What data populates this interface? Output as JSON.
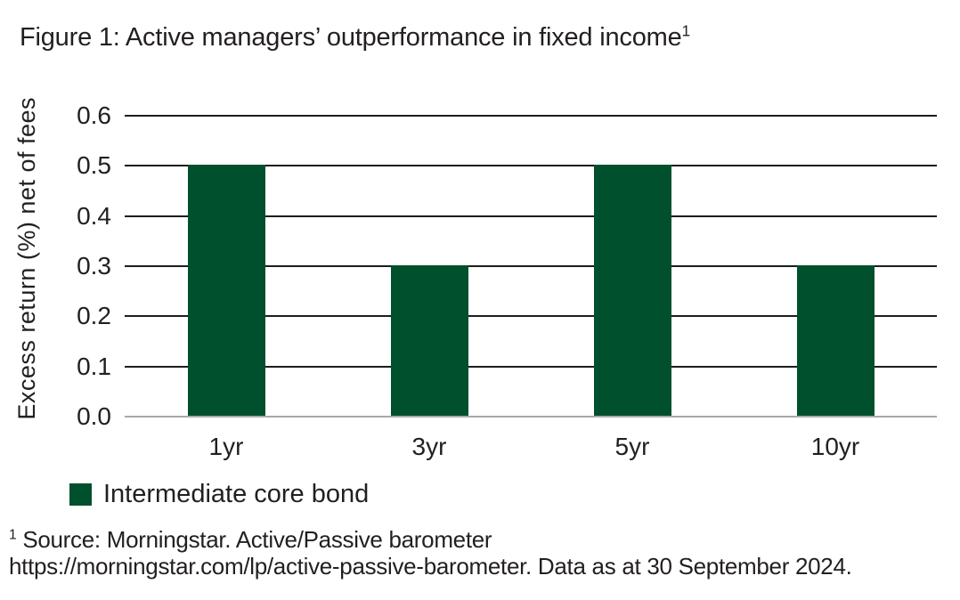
{
  "title": {
    "text": "Figure 1: Active managers’ outperformance in fixed income",
    "superscript": "1"
  },
  "chart_data": {
    "type": "bar",
    "categories": [
      "1yr",
      "3yr",
      "5yr",
      "10yr"
    ],
    "series": [
      {
        "name": "Intermediate core bond",
        "values": [
          0.5,
          0.3,
          0.5,
          0.3
        ]
      }
    ],
    "title": "Figure 1: Active managers’ outperformance in fixed income",
    "xlabel": "",
    "ylabel": "Excess return (%) net of fees",
    "ylim": [
      0,
      0.6
    ],
    "ytick_interval": 0.1,
    "ytick_labels": [
      "0.0",
      "0.1",
      "0.2",
      "0.3",
      "0.4",
      "0.5",
      "0.6"
    ],
    "grid": "horizontal",
    "legend_position": "bottom-left",
    "bar_color": "#004F2D"
  },
  "legend": {
    "items": [
      {
        "label": "Intermediate core bond",
        "color": "#004F2D"
      }
    ]
  },
  "footnote": {
    "superscript": "1",
    "line1": "Source: Morningstar. Active/Passive barometer",
    "line2": "https://morningstar.com/lp/active-passive-barometer. Data as at 30 September 2024."
  },
  "colors": {
    "background": "#FFFFFF",
    "text": "#231F20",
    "gridline": "#1D1D1B",
    "baseline": "#A7A9AC",
    "bar_green": "#004F2D"
  }
}
